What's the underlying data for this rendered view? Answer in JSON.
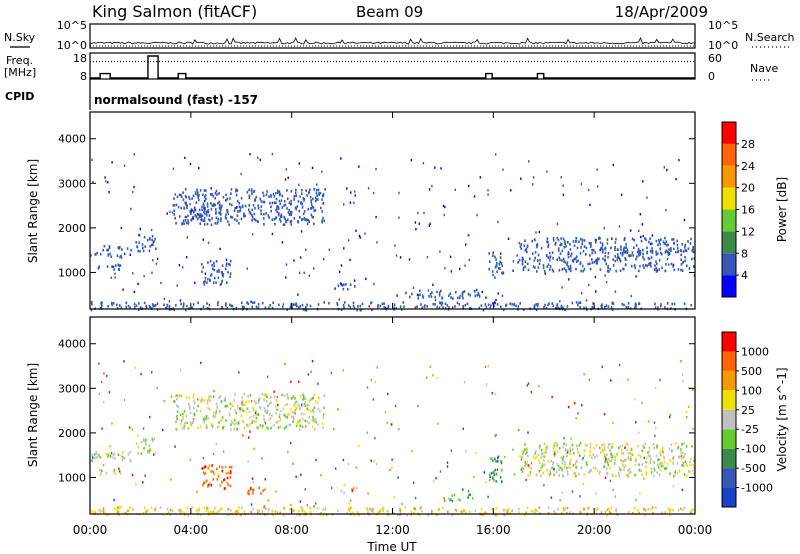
{
  "header": {
    "site": "King Salmon (fitACF)",
    "beam": "Beam 09",
    "date": "18/Apr/2009"
  },
  "side_labels": {
    "nsky": "N.Sky",
    "freq_line1": "Freq.",
    "freq_line2": "[MHz]",
    "cpid": "CPID",
    "nsearch": "N.Search",
    "nave": "Nave"
  },
  "cpid_text": "normalsound (fast) -157",
  "time_axis_label": "Time UT",
  "chart_data": [
    {
      "type": "line",
      "id": "noise",
      "left_ticks": [
        "10^5",
        "10^0"
      ],
      "right_ticks": [
        "10^5",
        "10^0"
      ],
      "series": [
        {
          "name": "N.Sky",
          "style": "solid"
        },
        {
          "name": "N.Search",
          "style": "dotted"
        }
      ]
    },
    {
      "type": "line",
      "id": "freq",
      "left_ticks": [
        18,
        8
      ],
      "right_ticks": [
        60,
        0
      ],
      "freq_steps": [
        {
          "t": 0.0,
          "f": 8
        },
        {
          "t": 0.4,
          "f": 10
        },
        {
          "t": 0.8,
          "f": 8
        },
        {
          "t": 2.3,
          "f": 18
        },
        {
          "t": 2.7,
          "f": 8
        },
        {
          "t": 3.5,
          "f": 10
        },
        {
          "t": 3.8,
          "f": 8
        },
        {
          "t": 15.7,
          "f": 10
        },
        {
          "t": 15.95,
          "f": 8
        },
        {
          "t": 17.75,
          "f": 10
        },
        {
          "t": 18.0,
          "f": 8
        },
        {
          "t": 24.0,
          "f": 8
        }
      ],
      "nave_level": 45
    },
    {
      "type": "heatmap",
      "id": "power",
      "ylabel": "Slant Range [km]",
      "yticks": [
        1000,
        2000,
        3000,
        4000
      ],
      "ylim": [
        180,
        4600
      ],
      "colorbar": {
        "label": "Power [dB]",
        "ticks": [
          4,
          8,
          12,
          16,
          20,
          24,
          28
        ],
        "range": [
          0,
          32
        ],
        "colors": [
          "#0000ff",
          "#3558b8",
          "#3a8a48",
          "#66cc33",
          "#f2e000",
          "#f59a00",
          "#ff6600",
          "#ff0000"
        ]
      },
      "regions": [
        {
          "t0": 0.0,
          "t1": 1.6,
          "r0": 1380,
          "r1": 1620,
          "val": 6
        },
        {
          "t0": 0.3,
          "t1": 1.2,
          "r0": 1080,
          "r1": 1220,
          "val": 5
        },
        {
          "t0": 1.8,
          "t1": 2.6,
          "r0": 1500,
          "r1": 1900,
          "val": 5
        },
        {
          "t0": 3.3,
          "t1": 9.3,
          "r0": 2100,
          "r1": 2900,
          "val": 6
        },
        {
          "t0": 3.8,
          "t1": 5.2,
          "r0": 2200,
          "r1": 2550,
          "val": 10
        },
        {
          "t0": 4.4,
          "t1": 5.6,
          "r0": 750,
          "r1": 1300,
          "val": 6
        },
        {
          "t0": 9.8,
          "t1": 10.6,
          "r0": 650,
          "r1": 790,
          "val": 5
        },
        {
          "t0": 12.5,
          "t1": 15.5,
          "r0": 430,
          "r1": 640,
          "val": 5
        },
        {
          "t0": 15.8,
          "t1": 16.4,
          "r0": 900,
          "r1": 1500,
          "val": 5
        },
        {
          "t0": 17.0,
          "t1": 24.0,
          "r0": 1050,
          "r1": 1800,
          "val": 6
        },
        {
          "t0": 0.0,
          "t1": 24.0,
          "r0": 180,
          "r1": 360,
          "val": 8
        }
      ]
    },
    {
      "type": "heatmap",
      "id": "velocity",
      "ylabel": "Slant Range [km]",
      "yticks": [
        1000,
        2000,
        3000,
        4000
      ],
      "ylim": [
        180,
        4600
      ],
      "colorbar": {
        "label": "Velocity [m s^-1]",
        "ticks": [
          "1000",
          "500",
          "100",
          "25",
          "-25",
          "-100",
          "-500",
          "-1000"
        ],
        "colors": [
          "#1c3fc8",
          "#3558b8",
          "#3a8a48",
          "#66cc33",
          "#c0c0c0",
          "#f2e000",
          "#f59a00",
          "#ff6600",
          "#ff0000"
        ]
      },
      "regions": [
        {
          "t0": 0.0,
          "t1": 1.6,
          "r0": 1380,
          "r1": 1620,
          "val": 4
        },
        {
          "t0": 0.3,
          "t1": 1.2,
          "r0": 1080,
          "r1": 1220,
          "val": 4
        },
        {
          "t0": 1.8,
          "t1": 2.6,
          "r0": 1500,
          "r1": 1900,
          "val": 4
        },
        {
          "t0": 3.3,
          "t1": 9.3,
          "r0": 2100,
          "r1": 2900,
          "val": 4
        },
        {
          "t0": 4.4,
          "t1": 5.6,
          "r0": 750,
          "r1": 1300,
          "val": 7
        },
        {
          "t0": 6.0,
          "t1": 7.0,
          "r0": 650,
          "r1": 800,
          "val": 7
        },
        {
          "t0": 9.8,
          "t1": 10.6,
          "r0": 650,
          "r1": 790,
          "val": 5
        },
        {
          "t0": 14.0,
          "t1": 15.3,
          "r0": 500,
          "r1": 640,
          "val": 3
        },
        {
          "t0": 15.8,
          "t1": 16.4,
          "r0": 900,
          "r1": 1500,
          "val": 2
        },
        {
          "t0": 17.0,
          "t1": 24.0,
          "r0": 1050,
          "r1": 1800,
          "val": 4
        },
        {
          "t0": 0.0,
          "t1": 24.0,
          "r0": 180,
          "r1": 360,
          "val": 5
        }
      ]
    }
  ],
  "time_ticks": [
    "00:00",
    "04:00",
    "08:00",
    "12:00",
    "16:00",
    "20:00",
    "00:00"
  ]
}
